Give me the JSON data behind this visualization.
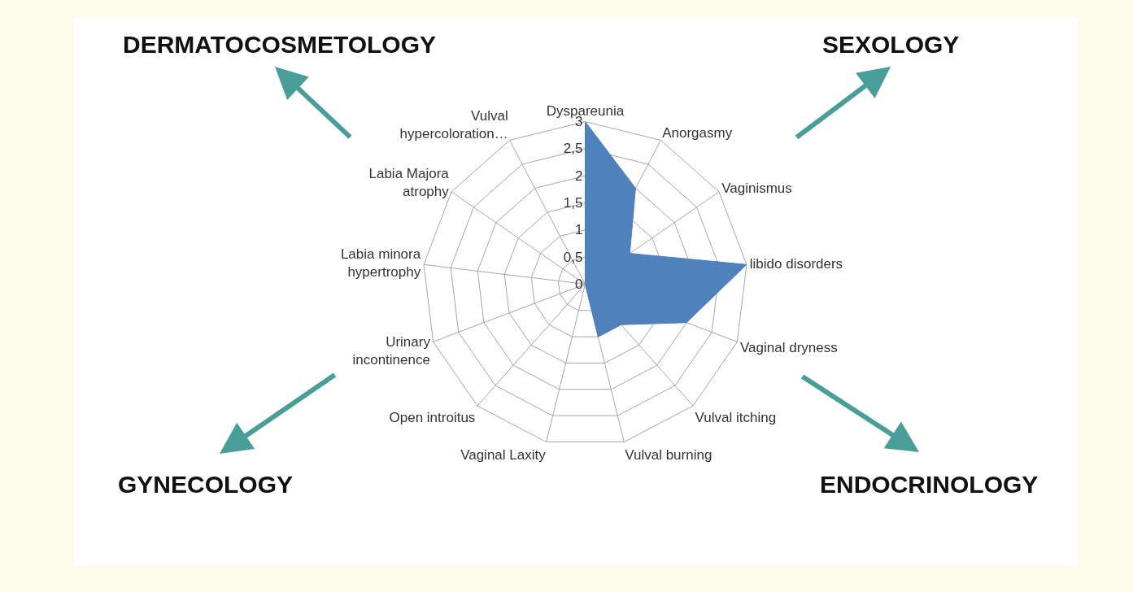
{
  "chart_data": {
    "type": "radar",
    "categories": [
      "Dyspareunia",
      "Anorgasmy",
      "Vaginismus",
      "libido disorders",
      "Vaginal dryness",
      "Vulval itching",
      "Vulval burning",
      "Vaginal Laxity",
      "Open introitus",
      "Urinary\nincontinence",
      "Labia minora\nhypertrophy",
      "Labia Majora\natrophy",
      "Vulval\nhypercoloration…"
    ],
    "series": [
      {
        "color": "#4f81bd",
        "values": [
          3,
          2,
          1,
          3,
          2,
          1,
          1,
          0,
          0,
          0,
          0,
          0,
          0
        ]
      }
    ],
    "ylim": [
      0,
      3
    ],
    "yticks": [
      0,
      {
        "value": 0.5,
        "label": "0,5"
      },
      1,
      {
        "value": 1.5,
        "label": "1,5"
      },
      2,
      {
        "value": 2.5,
        "label": "2,5"
      },
      3
    ],
    "grid": true,
    "annotations": [
      "DERMATOCOSMETOLOGY",
      "SEXOLOGY",
      "GYNECOLOGY",
      "ENDOCRINOLOGY"
    ]
  }
}
